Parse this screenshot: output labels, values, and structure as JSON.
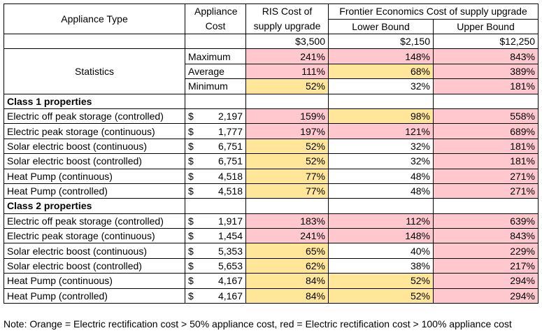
{
  "header": {
    "appliance_type": "Appliance Type",
    "appliance_cost": "Appliance Cost",
    "ris_cost": "RIS Cost of supply upgrade",
    "frontier": "Frontier Economics Cost of supply upgrade",
    "lower_bound": "Lower Bound",
    "upper_bound": "Upper Bound",
    "ris_value": "$3,500",
    "lower_value": "$2,150",
    "upper_value": "$12,250"
  },
  "statistics": {
    "label": "Statistics",
    "rows": [
      {
        "label": "Maximum",
        "ris": "241%",
        "lower": "148%",
        "upper": "843%"
      },
      {
        "label": "Average",
        "ris": "111%",
        "lower": "68%",
        "upper": "389%"
      },
      {
        "label": "Minimum",
        "ris": "52%",
        "lower": "32%",
        "upper": "181%"
      }
    ]
  },
  "class1": {
    "label": "Class 1 properties",
    "rows": [
      {
        "type": "Electric off peak storage (controlled)",
        "currency": "$",
        "cost": "2,197",
        "ris": "159%",
        "lower": "98%",
        "upper": "558%"
      },
      {
        "type": "Electric peak storage (continuous)",
        "currency": "$",
        "cost": "1,777",
        "ris": "197%",
        "lower": "121%",
        "upper": "689%"
      },
      {
        "type": "Solar electric boost (continuous)",
        "currency": "$",
        "cost": "6,751",
        "ris": "52%",
        "lower": "32%",
        "upper": "181%"
      },
      {
        "type": "Solar electric boost (controlled)",
        "currency": "$",
        "cost": "6,751",
        "ris": "52%",
        "lower": "32%",
        "upper": "181%"
      },
      {
        "type": "Heat Pump (continuous)",
        "currency": "$",
        "cost": "4,518",
        "ris": "77%",
        "lower": "48%",
        "upper": "271%"
      },
      {
        "type": "Heat Pump (controlled)",
        "currency": "$",
        "cost": "4,518",
        "ris": "77%",
        "lower": "48%",
        "upper": "271%"
      }
    ]
  },
  "class2": {
    "label": "Class 2 properties",
    "rows": [
      {
        "type": "Electric off peak storage (controlled)",
        "currency": "$",
        "cost": "1,917",
        "ris": "183%",
        "lower": "112%",
        "upper": "639%"
      },
      {
        "type": "Electric peak storage (continuous)",
        "currency": "$",
        "cost": "1,454",
        "ris": "241%",
        "lower": "148%",
        "upper": "843%"
      },
      {
        "type": "Solar electric boost (continuous)",
        "currency": "$",
        "cost": "5,353",
        "ris": "65%",
        "lower": "40%",
        "upper": "229%"
      },
      {
        "type": "Solar electric boost (controlled)",
        "currency": "$",
        "cost": "5,653",
        "ris": "62%",
        "lower": "38%",
        "upper": "217%"
      },
      {
        "type": "Heat Pump (continuous)",
        "currency": "$",
        "cost": "4,167",
        "ris": "84%",
        "lower": "52%",
        "upper": "294%"
      },
      {
        "type": "Heat Pump (controlled)",
        "currency": "$",
        "cost": "4,167",
        "ris": "84%",
        "lower": "52%",
        "upper": "294%"
      }
    ]
  },
  "colors": {
    "orange": "#ffe699",
    "red": "#ffc7ce"
  },
  "note": "Note: Orange = Electric rectification cost > 50% appliance cost, red = Electric rectification cost > 100% appliance cost"
}
